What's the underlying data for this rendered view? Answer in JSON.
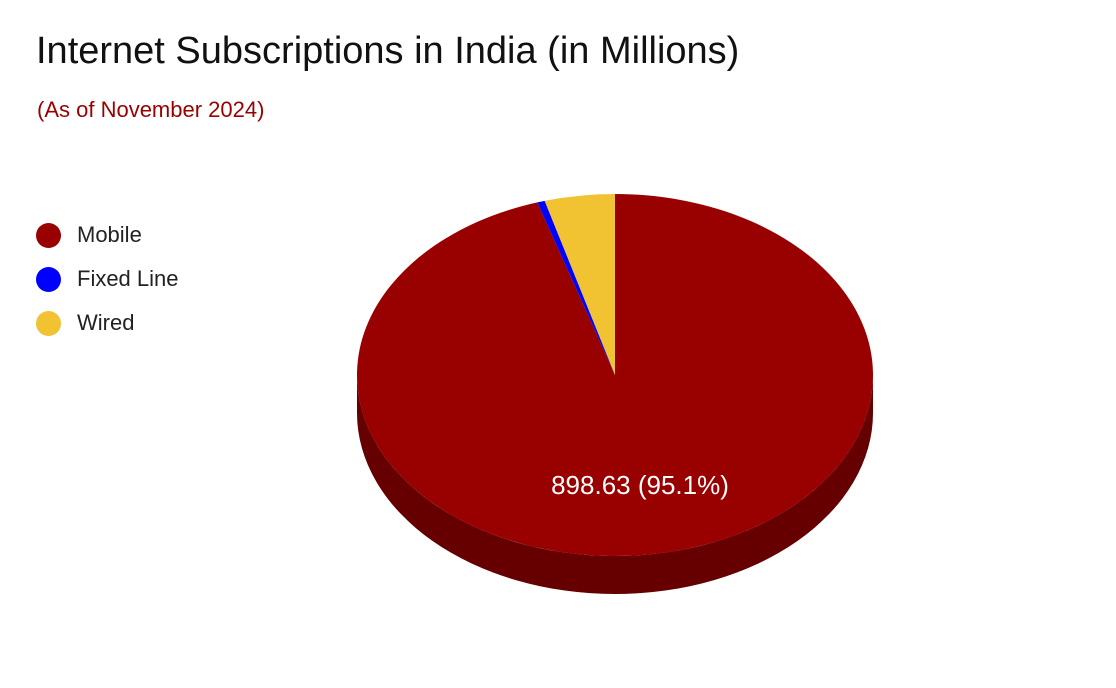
{
  "chart_data": {
    "type": "pie",
    "title": "Internet Subscriptions in India (in Millions)",
    "subtitle": "(As of November 2024)",
    "legend_position": "left",
    "slices": [
      {
        "label": "Mobile",
        "value": 898.63,
        "percent_label": "898.63 (95.1%)",
        "color": "#990000",
        "side_color": "#660000"
      },
      {
        "label": "Fixed Line",
        "value": 4.5,
        "percent_label": "",
        "color": "#0000ff",
        "side_color": "#0000aa"
      },
      {
        "label": "Wired",
        "value": 41.5,
        "percent_label": "",
        "color": "#f1c232",
        "side_color": "#b8921f"
      }
    ]
  }
}
